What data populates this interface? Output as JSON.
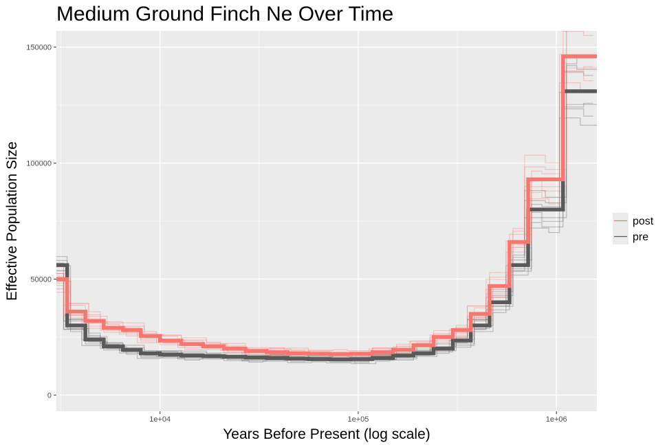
{
  "chart_data": {
    "type": "line",
    "title": "Medium Ground Finch Ne Over Time",
    "xlabel": "Years Before Present (log scale)",
    "ylabel": "Effective Population Size",
    "x_scale": "log10",
    "xlim": [
      3000,
      1600000
    ],
    "ylim": [
      -7000,
      157000
    ],
    "x_ticks": [
      10000,
      100000,
      1000000
    ],
    "x_tick_labels": [
      "1e+04",
      "1e+05",
      "1e+06"
    ],
    "y_ticks": [
      0,
      50000,
      100000,
      150000
    ],
    "y_tick_labels": [
      "0",
      "50000",
      "100000",
      "150000"
    ],
    "grid": true,
    "legend_position": "right",
    "colors": {
      "post": "#f8766d",
      "pre": "#595959",
      "panel": "#ebebeb",
      "grid": "#ffffff"
    },
    "step_x": [
      3400,
      4200,
      5200,
      6500,
      8000,
      10000,
      12800,
      16500,
      21000,
      27000,
      34500,
      44000,
      56000,
      72000,
      92000,
      118000,
      150000,
      190000,
      240000,
      300000,
      370000,
      460000,
      580000,
      720000,
      880000,
      1080000,
      1320000,
      1600000
    ],
    "series": [
      {
        "name": "pre",
        "values": [
          56000,
          30000,
          24000,
          21000,
          19500,
          18000,
          17500,
          17000,
          16800,
          16500,
          16200,
          16000,
          15700,
          15500,
          15400,
          15500,
          16000,
          17000,
          18000,
          20000,
          23500,
          30000,
          40000,
          56000,
          80000,
          80000,
          131000,
          131000
        ]
      },
      {
        "name": "post",
        "values": [
          50000,
          36000,
          32000,
          29000,
          28000,
          25500,
          23500,
          22000,
          21000,
          20000,
          19000,
          18500,
          18000,
          17800,
          17600,
          17800,
          18500,
          19500,
          21500,
          25000,
          28000,
          35000,
          47000,
          66000,
          93000,
          93000,
          146000,
          146000
        ]
      }
    ],
    "replicate_noise": {
      "post": [
        0.94,
        1.07,
        1.03,
        0.97,
        1.1,
        0.91,
        1.05,
        0.99
      ],
      "pre": [
        0.93,
        1.06,
        1.02,
        0.96,
        1.09,
        0.9,
        1.04,
        0.98
      ]
    }
  }
}
